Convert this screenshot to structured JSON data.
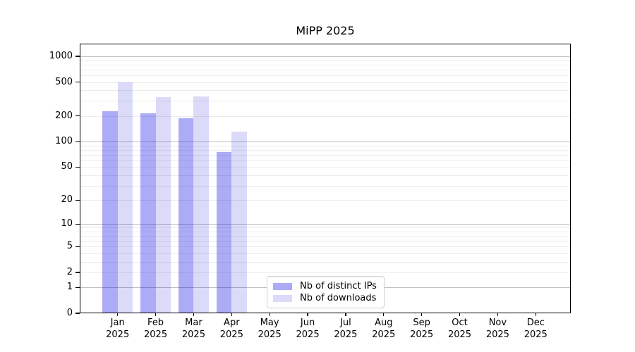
{
  "title": "MiPP 2025",
  "chart_data": {
    "type": "bar",
    "title": "MiPP 2025",
    "categories": [
      "Jan 2025",
      "Feb 2025",
      "Mar 2025",
      "Apr 2025",
      "May 2025",
      "Jun 2025",
      "Jul 2025",
      "Aug 2025",
      "Sep 2025",
      "Oct 2025",
      "Nov 2025",
      "Dec 2025"
    ],
    "category_lines": [
      {
        "month": "Jan",
        "year": "2025"
      },
      {
        "month": "Feb",
        "year": "2025"
      },
      {
        "month": "Mar",
        "year": "2025"
      },
      {
        "month": "Apr",
        "year": "2025"
      },
      {
        "month": "May",
        "year": "2025"
      },
      {
        "month": "Jun",
        "year": "2025"
      },
      {
        "month": "Jul",
        "year": "2025"
      },
      {
        "month": "Aug",
        "year": "2025"
      },
      {
        "month": "Sep",
        "year": "2025"
      },
      {
        "month": "Oct",
        "year": "2025"
      },
      {
        "month": "Nov",
        "year": "2025"
      },
      {
        "month": "Dec",
        "year": "2025"
      }
    ],
    "series": [
      {
        "name": "Nb of distinct IPs",
        "color": "rgba(8,8,228,0.34)",
        "color_hex_on_white": "#a9a9f4",
        "values": [
          228,
          214,
          190,
          75,
          null,
          null,
          null,
          null,
          null,
          null,
          null,
          null
        ]
      },
      {
        "name": "Nb of downloads",
        "color": "rgba(10,10,215,0.145)",
        "color_hex_on_white": "#dbdbf9",
        "values": [
          495,
          335,
          341,
          132,
          null,
          null,
          null,
          null,
          null,
          null,
          null,
          null
        ]
      }
    ],
    "yscale": "symlog (log10 of value+1)",
    "ylim": [
      0,
      1420
    ],
    "ytick_values": [
      0,
      1,
      2,
      5,
      10,
      20,
      50,
      100,
      200,
      500,
      1000
    ],
    "ytick_labels": [
      "0",
      "1",
      "2",
      "5",
      "10",
      "20",
      "50",
      "100",
      "200",
      "500",
      "1000"
    ],
    "grid": {
      "orientation": "horizontal",
      "major_values": [
        1,
        10,
        100,
        1000
      ],
      "major_color": "#c0c0c0",
      "minor_color": "#ebebeb"
    },
    "legend": {
      "position": "inside lower-center",
      "border_color": "#d0d0d0",
      "background": "#ffffff"
    }
  }
}
